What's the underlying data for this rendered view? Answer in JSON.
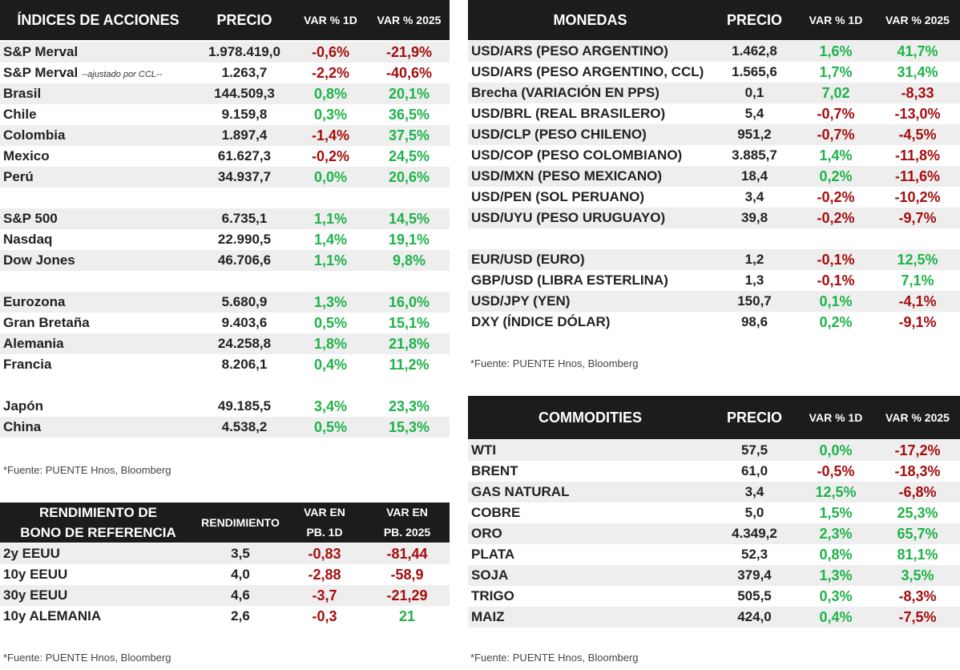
{
  "indices": {
    "headers": [
      "ÍNDICES DE ACCIONES",
      "PRECIO",
      "VAR % 1D",
      "VAR % 2025"
    ],
    "rows": [
      {
        "name": "S&P Merval",
        "note": "",
        "price": "1.978.419,0",
        "d1": "-0,6%",
        "y": "-21,9%"
      },
      {
        "name": "S&P Merval",
        "note": "--ajustado por CCL--",
        "price": "1.263,7",
        "d1": "-2,2%",
        "y": "-40,6%"
      },
      {
        "name": "Brasil",
        "price": "144.509,3",
        "d1": "0,8%",
        "y": "20,1%"
      },
      {
        "name": "Chile",
        "price": "9.159,8",
        "d1": "0,3%",
        "y": "36,5%"
      },
      {
        "name": "Colombia",
        "price": "1.897,4",
        "d1": "-1,4%",
        "y": "37,5%"
      },
      {
        "name": "Mexico",
        "price": "61.627,3",
        "d1": "-0,2%",
        "y": "24,5%"
      },
      {
        "name": "Perú",
        "price": "34.937,7",
        "d1": "0,0%",
        "y": "20,6%"
      },
      {
        "blank": true
      },
      {
        "name": "S&P 500",
        "price": "6.735,1",
        "d1": "1,1%",
        "y": "14,5%"
      },
      {
        "name": "Nasdaq",
        "price": "22.990,5",
        "d1": "1,4%",
        "y": "19,1%"
      },
      {
        "name": "Dow Jones",
        "price": "46.706,6",
        "d1": "1,1%",
        "y": "9,8%"
      },
      {
        "blank": true
      },
      {
        "name": "Eurozona",
        "price": "5.680,9",
        "d1": "1,3%",
        "y": "16,0%"
      },
      {
        "name": "Gran Bretaña",
        "price": "9.403,6",
        "d1": "0,5%",
        "y": "15,1%"
      },
      {
        "name": "Alemania",
        "price": "24.258,8",
        "d1": "1,8%",
        "y": "21,8%"
      },
      {
        "name": "Francia",
        "price": "8.206,1",
        "d1": "0,4%",
        "y": "11,2%"
      },
      {
        "blank": true
      },
      {
        "name": "Japón",
        "price": "49.185,5",
        "d1": "3,4%",
        "y": "23,3%"
      },
      {
        "name": "China",
        "price": "4.538,2",
        "d1": "0,5%",
        "y": "15,3%"
      }
    ],
    "source": "*Fuente: PUENTE Hnos, Bloomberg"
  },
  "bonds": {
    "headers": [
      "RENDIMIENTO DE\nBONO DE REFERENCIA",
      "RENDIMIENTO",
      "VAR EN\nPB. 1D",
      "VAR EN\nPB. 2025"
    ],
    "rows": [
      {
        "name": "2y EEUU",
        "price": "3,5",
        "d1": "-0,83",
        "y": "-81,44"
      },
      {
        "name": "10y EEUU",
        "price": "4,0",
        "d1": "-2,88",
        "y": "-58,9"
      },
      {
        "name": "30y EEUU",
        "price": "4,6",
        "d1": "-3,7",
        "y": "-21,29"
      },
      {
        "name": "10y ALEMANIA",
        "price": "2,6",
        "d1": "-0,3",
        "y": "21"
      }
    ],
    "source": "*Fuente: PUENTE Hnos, Bloomberg"
  },
  "currencies": {
    "headers": [
      "MONEDAS",
      "PRECIO",
      "VAR % 1D",
      "VAR % 2025"
    ],
    "rows": [
      {
        "name": "USD/ARS (PESO ARGENTINO)",
        "price": "1.462,8",
        "d1": "1,6%",
        "y": "41,7%"
      },
      {
        "name": "USD/ARS (PESO ARGENTINO, CCL)",
        "price": "1.565,6",
        "d1": "1,7%",
        "y": "31,4%"
      },
      {
        "name": "Brecha (VARIACIÓN EN PPS)",
        "price": "0,1",
        "d1": "7,02",
        "y": "-8,33"
      },
      {
        "name": "USD/BRL (REAL BRASILERO)",
        "price": "5,4",
        "d1": "-0,7%",
        "y": "-13,0%"
      },
      {
        "name": "USD/CLP (PESO CHILENO)",
        "price": "951,2",
        "d1": "-0,7%",
        "y": "-4,5%"
      },
      {
        "name": "USD/COP (PESO COLOMBIANO)",
        "price": "3.885,7",
        "d1": "1,4%",
        "y": "-11,8%"
      },
      {
        "name": "USD/MXN (PESO MEXICANO)",
        "price": "18,4",
        "d1": "0,2%",
        "y": "-11,6%"
      },
      {
        "name": "USD/PEN (SOL PERUANO)",
        "price": "3,4",
        "d1": "-0,2%",
        "y": "-10,2%"
      },
      {
        "name": "USD/UYU (PESO URUGUAYO)",
        "price": "39,8",
        "d1": "-0,2%",
        "y": "-9,7%"
      },
      {
        "blank": true
      },
      {
        "name": "EUR/USD (EURO)",
        "price": "1,2",
        "d1": "-0,1%",
        "y": "12,5%"
      },
      {
        "name": "GBP/USD (LIBRA ESTERLINA)",
        "price": "1,3",
        "d1": "-0,1%",
        "y": "7,1%"
      },
      {
        "name": "USD/JPY (YEN)",
        "price": "150,7",
        "d1": "0,1%",
        "y": "-4,1%"
      },
      {
        "name": "DXY (ÍNDICE DÓLAR)",
        "price": "98,6",
        "d1": "0,2%",
        "y": "-9,1%"
      }
    ],
    "source": "*Fuente: PUENTE Hnos, Bloomberg"
  },
  "commodities": {
    "headers": [
      "COMMODITIES",
      "PRECIO",
      "VAR % 1D",
      "VAR % 2025"
    ],
    "rows": [
      {
        "name": "WTI",
        "price": "57,5",
        "d1": "0,0%",
        "y": "-17,2%"
      },
      {
        "name": "BRENT",
        "price": "61,0",
        "d1": "-0,5%",
        "y": "-18,3%"
      },
      {
        "name": "GAS NATURAL",
        "price": "3,4",
        "d1": "12,5%",
        "y": "-6,8%"
      },
      {
        "name": "COBRE",
        "price": "5,0",
        "d1": "1,5%",
        "y": "25,3%"
      },
      {
        "name": "ORO",
        "price": "4.349,2",
        "d1": "2,3%",
        "y": "65,7%"
      },
      {
        "name": "PLATA",
        "price": "52,3",
        "d1": "0,8%",
        "y": "81,1%"
      },
      {
        "name": "SOJA",
        "price": "379,4",
        "d1": "1,3%",
        "y": "3,5%"
      },
      {
        "name": "TRIGO",
        "price": "505,5",
        "d1": "0,3%",
        "y": "-8,3%"
      },
      {
        "name": "MAIZ",
        "price": "424,0",
        "d1": "0,4%",
        "y": "-7,5%"
      }
    ],
    "source": "*Fuente: PUENTE Hnos, Bloomberg"
  },
  "colors": {
    "positive": "#1fb34a",
    "negative": "#a50e0e",
    "header_bg": "#1c1c1c"
  }
}
